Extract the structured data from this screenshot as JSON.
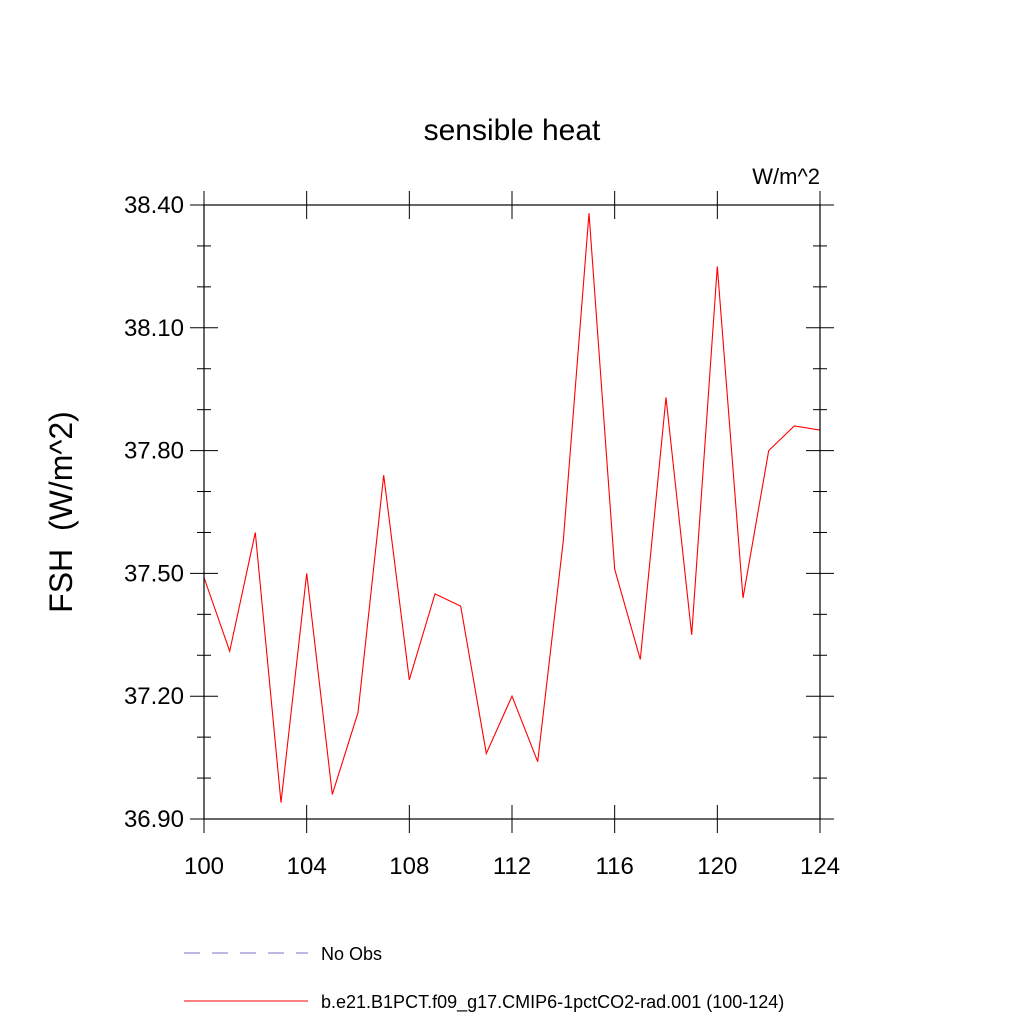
{
  "chart_data": {
    "type": "line",
    "title": "sensible heat",
    "units_label": "W/m^2",
    "ylabel": "FSH  (W/m^2)",
    "xlabel": "",
    "xlim": [
      100,
      124
    ],
    "ylim": [
      36.9,
      38.4
    ],
    "x_ticks": [
      100,
      104,
      108,
      112,
      116,
      120,
      124
    ],
    "x_tick_labels": [
      "100",
      "104",
      "108",
      "112",
      "116",
      "120",
      "124"
    ],
    "y_ticks": [
      36.9,
      37.2,
      37.5,
      37.8,
      38.1,
      38.4
    ],
    "y_tick_labels": [
      "36.90",
      "37.20",
      "37.50",
      "37.80",
      "38.10",
      "38.40"
    ],
    "grid": false,
    "legend_placement": "bottom",
    "series": [
      {
        "name": "b.e21.B1PCT.f09_g17.CMIP6-1pctCO2-rad.001 (100-124)",
        "color": "#ff0000",
        "style": "solid",
        "x": [
          100,
          101,
          102,
          103,
          104,
          105,
          106,
          107,
          108,
          109,
          110,
          111,
          112,
          113,
          114,
          115,
          116,
          117,
          118,
          119,
          120,
          121,
          122,
          123,
          124
        ],
        "y": [
          37.49,
          37.31,
          37.6,
          36.94,
          37.5,
          36.96,
          37.16,
          37.74,
          37.24,
          37.45,
          37.42,
          37.06,
          37.2,
          37.04,
          37.58,
          38.38,
          37.51,
          37.29,
          37.93,
          37.35,
          38.25,
          37.44,
          37.8,
          37.86,
          37.85
        ]
      },
      {
        "name": "No Obs",
        "color": "#7b6fc6",
        "style": "dashed",
        "x": [],
        "y": []
      }
    ]
  }
}
